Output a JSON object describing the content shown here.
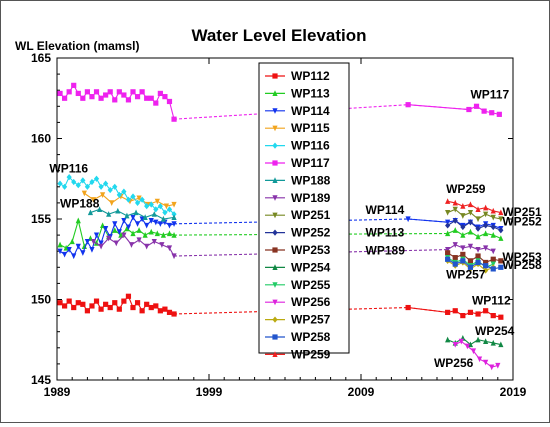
{
  "chart_data": {
    "type": "line",
    "title": "Water Level Elevation",
    "ylabel": "WL Elevation (mamsl)",
    "xlabel": "",
    "xlim": [
      1989,
      2019
    ],
    "ylim": [
      145,
      165
    ],
    "xticks": [
      "1989",
      "1999",
      "2009",
      "2019"
    ],
    "yticks": [
      "145",
      "150",
      "155",
      "160",
      "165"
    ],
    "grid": false,
    "legend_position": "center",
    "series": [
      {
        "name": "WP112",
        "color": "#ee1111",
        "marker": "square",
        "dashed_link": [
          [
            1996.7,
            149.1
          ],
          [
            2012.1,
            149.5
          ],
          [
            2014.7,
            149.2
          ]
        ],
        "x": [
          1989.2,
          1989.5,
          1989.8,
          1990.1,
          1990.4,
          1990.7,
          1991.0,
          1991.3,
          1991.6,
          1991.9,
          1992.2,
          1992.5,
          1992.8,
          1993.1,
          1993.4,
          1993.7,
          1994.0,
          1994.3,
          1994.6,
          1994.9,
          1995.2,
          1995.5,
          1995.8,
          1996.1,
          1996.4,
          1996.7
        ],
        "y": [
          149.8,
          149.6,
          149.9,
          149.5,
          149.8,
          149.7,
          149.3,
          149.6,
          149.9,
          149.4,
          149.7,
          149.5,
          149.8,
          149.4,
          149.9,
          150.2,
          149.5,
          149.8,
          149.3,
          149.7,
          149.5,
          149.6,
          149.3,
          149.4,
          149.2,
          149.1
        ],
        "x2": [
          2012.1,
          2014.7,
          2015.2,
          2015.7,
          2016.2,
          2016.7,
          2017.2,
          2017.7,
          2018.2
        ],
        "y2": [
          149.5,
          149.2,
          149.3,
          149.0,
          149.2,
          149.1,
          149.3,
          149.0,
          148.9
        ]
      },
      {
        "name": "WP113",
        "color": "#22cc22",
        "marker": "triangle",
        "dashed_link": [
          [
            1996.7,
            154.0
          ],
          [
            2014.7,
            154.1
          ]
        ],
        "x": [
          1989.2,
          1989.6,
          1990.0,
          1990.4,
          1990.8,
          1991.2,
          1991.6,
          1992.0,
          1992.4,
          1992.8,
          1993.2,
          1993.6,
          1994.0,
          1994.4,
          1994.8,
          1995.2,
          1995.6,
          1996.0,
          1996.4,
          1996.7
        ],
        "y": [
          153.4,
          153.2,
          153.6,
          154.9,
          153.3,
          153.8,
          153.5,
          154.6,
          153.9,
          154.3,
          154.0,
          154.4,
          154.1,
          154.3,
          154.0,
          154.2,
          154.1,
          154.0,
          154.1,
          154.0
        ],
        "x2": [
          2014.7,
          2015.2,
          2015.7,
          2016.2,
          2016.7,
          2017.2,
          2017.7,
          2018.2
        ],
        "y2": [
          154.1,
          154.3,
          154.0,
          154.2,
          153.9,
          154.1,
          154.0,
          153.8
        ]
      },
      {
        "name": "WP114",
        "color": "#1133ee",
        "marker": "triangle-down",
        "dashed_link": [
          [
            1996.7,
            154.7
          ],
          [
            2012.1,
            155.0
          ],
          [
            2014.7,
            154.8
          ]
        ],
        "x": [
          1989.2,
          1989.5,
          1989.8,
          1990.1,
          1990.4,
          1990.7,
          1991.0,
          1991.3,
          1991.6,
          1991.9,
          1992.2,
          1992.5,
          1992.8,
          1993.1,
          1993.4,
          1993.7,
          1994.0,
          1994.3,
          1994.6,
          1994.9,
          1995.2,
          1995.5,
          1995.8,
          1996.1,
          1996.4,
          1996.7
        ],
        "y": [
          153.0,
          152.8,
          153.1,
          152.7,
          153.3,
          152.9,
          153.6,
          153.1,
          154.0,
          153.5,
          154.4,
          153.9,
          154.7,
          154.2,
          154.9,
          154.5,
          155.1,
          154.7,
          155.0,
          154.6,
          154.9,
          154.8,
          154.7,
          154.8,
          154.6,
          154.7
        ],
        "x2": [
          2012.1,
          2014.7,
          2015.2,
          2015.7,
          2016.2,
          2016.7,
          2017.2,
          2017.7,
          2018.2
        ],
        "y2": [
          155.0,
          154.8,
          154.9,
          154.6,
          154.8,
          154.5,
          154.7,
          154.6,
          154.4
        ]
      },
      {
        "name": "WP115",
        "color": "#f2a41d",
        "marker": "triangle-down",
        "x": [
          1990.8,
          1991.4,
          1992.0,
          1992.6,
          1993.2,
          1993.8,
          1994.4,
          1995.0,
          1995.6,
          1996.2,
          1996.7
        ],
        "y": [
          156.6,
          156.2,
          156.5,
          156.0,
          156.4,
          156.1,
          156.3,
          155.9,
          156.1,
          155.8,
          155.9
        ]
      },
      {
        "name": "WP116",
        "color": "#22d8ee",
        "marker": "diamond",
        "x": [
          1989.2,
          1989.5,
          1989.8,
          1990.1,
          1990.4,
          1990.7,
          1991.0,
          1991.3,
          1991.6,
          1991.9,
          1992.2,
          1992.5,
          1992.8,
          1993.1,
          1993.4,
          1993.7,
          1994.0,
          1994.3,
          1994.6,
          1994.9,
          1995.2,
          1995.5,
          1995.8,
          1996.1,
          1996.4,
          1996.7
        ],
        "y": [
          157.2,
          157.0,
          157.6,
          157.3,
          157.1,
          157.4,
          157.0,
          157.3,
          157.5,
          157.0,
          157.2,
          156.8,
          157.0,
          156.5,
          156.7,
          156.2,
          156.4,
          156.0,
          156.2,
          155.8,
          155.9,
          155.6,
          155.8,
          155.4,
          155.6,
          155.3
        ]
      },
      {
        "name": "WP117",
        "color": "#ee22ee",
        "marker": "square",
        "dashed_link": [
          [
            1996.7,
            161.2
          ],
          [
            2012.1,
            162.1
          ],
          [
            2016.1,
            161.8
          ]
        ],
        "x": [
          1989.2,
          1989.5,
          1989.8,
          1990.1,
          1990.4,
          1990.7,
          1991.0,
          1991.3,
          1991.6,
          1991.9,
          1992.2,
          1992.5,
          1992.8,
          1993.1,
          1993.4,
          1993.7,
          1994.0,
          1994.3,
          1994.6,
          1994.9,
          1995.2,
          1995.5,
          1995.8,
          1996.1,
          1996.4,
          1996.7
        ],
        "y": [
          162.8,
          162.5,
          162.9,
          163.3,
          162.8,
          162.5,
          162.9,
          162.6,
          162.9,
          162.5,
          162.7,
          162.9,
          162.4,
          162.9,
          162.7,
          162.4,
          162.9,
          162.6,
          162.9,
          162.5,
          162.5,
          162.2,
          162.8,
          162.6,
          162.3,
          161.2
        ],
        "x2": [
          2012.1,
          2016.1,
          2016.6,
          2017.1,
          2017.6,
          2018.1
        ],
        "y2": [
          162.1,
          161.8,
          162.0,
          161.7,
          161.6,
          161.5
        ]
      },
      {
        "name": "WP188",
        "color": "#119999",
        "marker": "triangle",
        "x": [
          1991.2,
          1991.8,
          1992.4,
          1993.0,
          1993.6,
          1994.2,
          1994.8,
          1995.4,
          1996.0,
          1996.7
        ],
        "y": [
          155.4,
          155.6,
          155.3,
          155.5,
          155.2,
          155.4,
          155.1,
          155.3,
          155.0,
          155.1
        ]
      },
      {
        "name": "WP189",
        "color": "#8833aa",
        "marker": "triangle-down",
        "dashed_link": [
          [
            1996.7,
            152.7
          ],
          [
            2014.7,
            153.1
          ]
        ],
        "x": [
          1991.4,
          1991.9,
          1992.4,
          1992.9,
          1993.4,
          1993.9,
          1994.4,
          1994.9,
          1995.4,
          1995.9,
          1996.4,
          1996.7
        ],
        "y": [
          153.6,
          153.3,
          153.8,
          153.5,
          154.0,
          153.4,
          153.7,
          153.3,
          153.6,
          153.4,
          153.2,
          152.7
        ],
        "x2": [
          2014.7,
          2015.2,
          2015.7,
          2016.2,
          2016.7,
          2017.2,
          2017.7
        ],
        "y2": [
          153.1,
          153.4,
          153.2,
          153.3,
          153.1,
          153.2,
          153.0
        ]
      },
      {
        "name": "WP251",
        "color": "#778822",
        "marker": "triangle-down",
        "x": [
          2014.7,
          2015.2,
          2015.7,
          2016.2,
          2016.7,
          2017.2,
          2017.7,
          2018.2
        ],
        "y": [
          155.4,
          155.6,
          155.2,
          155.4,
          155.0,
          155.3,
          155.1,
          155.0
        ]
      },
      {
        "name": "WP252",
        "color": "#223399",
        "marker": "diamond",
        "x": [
          2014.7,
          2015.2,
          2015.7,
          2016.2,
          2016.7,
          2017.2,
          2017.7,
          2018.2
        ],
        "y": [
          154.6,
          154.9,
          154.5,
          154.8,
          154.4,
          154.6,
          154.5,
          154.3
        ]
      },
      {
        "name": "WP253",
        "color": "#883322",
        "marker": "square",
        "x": [
          2014.7,
          2015.2,
          2015.7,
          2016.2,
          2016.7,
          2017.2,
          2017.7,
          2018.2
        ],
        "y": [
          152.9,
          152.6,
          152.8,
          152.4,
          152.7,
          152.3,
          152.5,
          152.4
        ]
      },
      {
        "name": "WP254",
        "color": "#118844",
        "marker": "triangle",
        "x": [
          2014.7,
          2015.2,
          2015.7,
          2016.2,
          2016.7,
          2017.2,
          2017.7,
          2018.2
        ],
        "y": [
          147.5,
          147.3,
          147.6,
          147.2,
          147.5,
          147.4,
          147.3,
          147.2
        ]
      },
      {
        "name": "WP255",
        "color": "#22cc66",
        "marker": "triangle-down",
        "x": [
          2014.7,
          2015.2,
          2015.7,
          2016.2,
          2016.7,
          2017.2,
          2017.7
        ],
        "y": [
          152.6,
          152.3,
          152.5,
          152.1,
          152.4,
          152.0,
          152.2
        ]
      },
      {
        "name": "WP256",
        "color": "#dd22dd",
        "marker": "triangle-down",
        "x": [
          2015.2,
          2015.6,
          2016.0,
          2016.4,
          2016.8,
          2017.2,
          2017.6,
          2018.0
        ],
        "y": [
          147.2,
          147.4,
          147.1,
          146.8,
          146.3,
          146.1,
          145.8,
          145.9
        ]
      },
      {
        "name": "WP257",
        "color": "#bbaa11",
        "marker": "diamond",
        "x": [
          2014.7,
          2015.2,
          2015.7,
          2016.2,
          2016.7,
          2017.2,
          2017.7
        ],
        "y": [
          152.4,
          152.1,
          152.3,
          151.9,
          152.2,
          151.8,
          152.0
        ]
      },
      {
        "name": "WP258",
        "color": "#2255cc",
        "marker": "square",
        "x": [
          2014.7,
          2015.2,
          2015.7,
          2016.2,
          2016.7,
          2017.2,
          2017.7,
          2018.2
        ],
        "y": [
          152.5,
          152.2,
          152.4,
          152.0,
          152.3,
          152.1,
          151.9,
          152.0
        ]
      },
      {
        "name": "WP259",
        "color": "#ee2222",
        "marker": "triangle",
        "x": [
          2014.7,
          2015.2,
          2015.7,
          2016.2,
          2016.7,
          2017.2,
          2017.7,
          2018.2
        ],
        "y": [
          156.1,
          156.0,
          155.8,
          155.9,
          155.6,
          155.7,
          155.5,
          155.4
        ]
      }
    ],
    "annotations": [
      {
        "text": "WP116",
        "x": 1988.5,
        "y": 157.9
      },
      {
        "text": "WP188",
        "x": 1989.2,
        "y": 155.7
      },
      {
        "text": "WP117",
        "x": 2016.2,
        "y": 162.5
      },
      {
        "text": "WP259",
        "x": 2014.6,
        "y": 156.6
      },
      {
        "text": "WP251",
        "x": 2018.3,
        "y": 155.2
      },
      {
        "text": "WP252",
        "x": 2018.3,
        "y": 154.6
      },
      {
        "text": "WP114",
        "x": 2009.3,
        "y": 155.3
      },
      {
        "text": "WP113",
        "x": 2009.3,
        "y": 153.9
      },
      {
        "text": "WP189",
        "x": 2009.3,
        "y": 152.8
      },
      {
        "text": "WP253",
        "x": 2018.3,
        "y": 152.4
      },
      {
        "text": "WP258",
        "x": 2018.3,
        "y": 151.9
      },
      {
        "text": "WP257",
        "x": 2014.6,
        "y": 151.3
      },
      {
        "text": "WP112",
        "x": 2016.3,
        "y": 149.7
      },
      {
        "text": "WP254",
        "x": 2016.5,
        "y": 147.8
      },
      {
        "text": "WP256",
        "x": 2013.8,
        "y": 145.8
      }
    ]
  }
}
